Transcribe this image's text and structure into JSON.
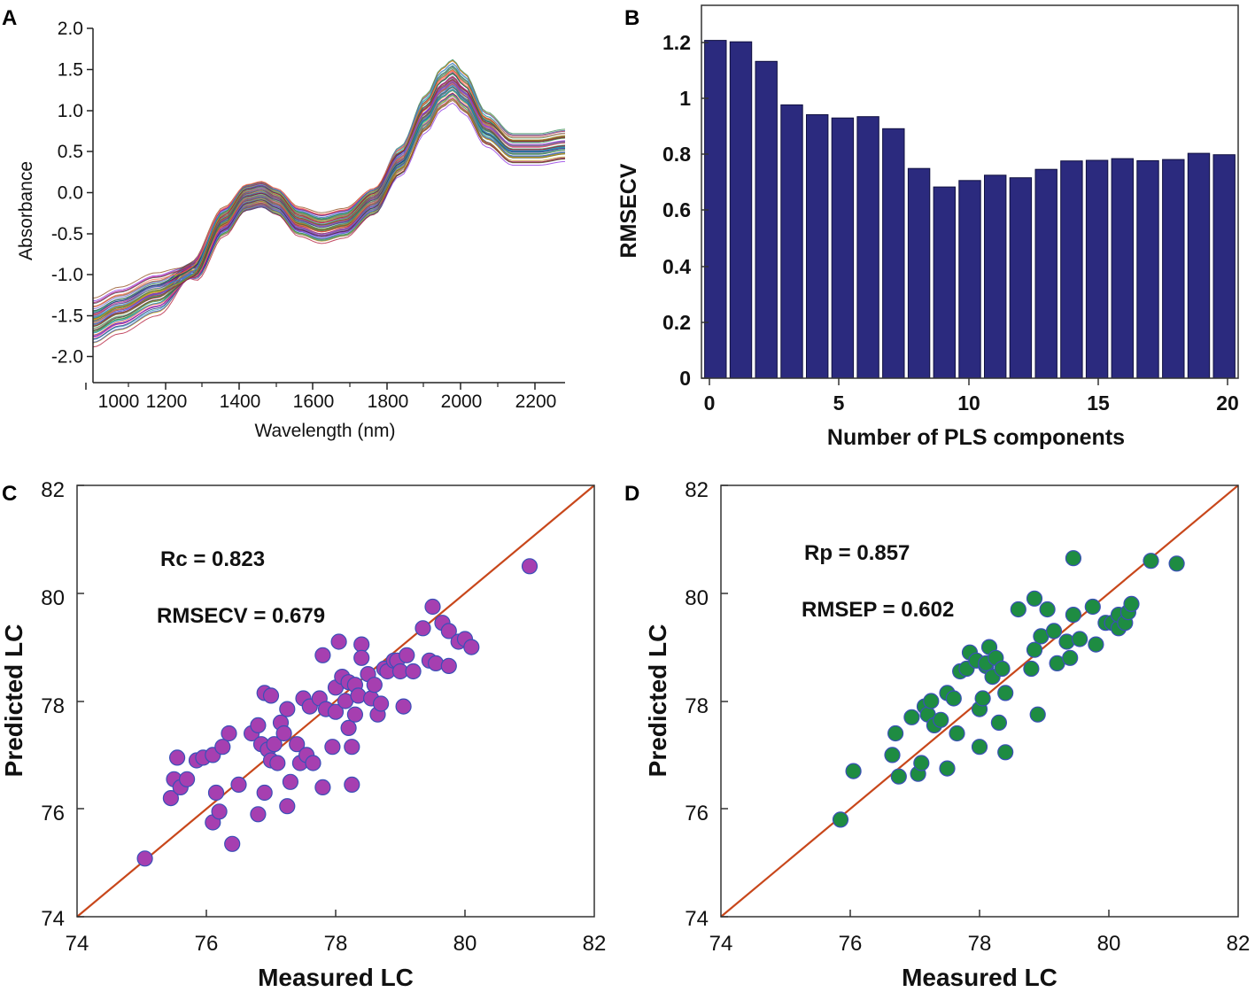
{
  "chart_data": [
    {
      "panel": "A",
      "type": "line",
      "xlabel": "Wavelength (nm)",
      "ylabel": "Absorbance",
      "xlim": [
        1030,
        2290
      ],
      "ylim": [
        -2.3,
        2.1
      ],
      "xticks": [
        1000,
        1200,
        1400,
        1600,
        1800,
        2000,
        2200
      ],
      "xtick_labels": [
        "1000",
        "1200",
        "1400",
        "1600",
        "1800",
        "2000",
        "2200"
      ],
      "yticks": [
        -2.0,
        -1.5,
        -1.0,
        -0.5,
        0.0,
        0.5,
        1.0,
        1.5,
        2.0
      ],
      "ytick_labels": [
        "-2.0",
        "-1.5",
        "-1.0",
        "-0.5",
        "0.0",
        "0.5",
        "1.0",
        "1.5",
        "2.0"
      ],
      "series_count": 60,
      "mean_spectrum": {
        "x": [
          1030,
          1100,
          1200,
          1300,
          1380,
          1440,
          1480,
          1520,
          1580,
          1640,
          1700,
          1780,
          1850,
          1920,
          1960,
          1990,
          2020,
          2080,
          2150,
          2220,
          2290
        ],
        "y": [
          -1.55,
          -1.4,
          -1.2,
          -0.9,
          -0.3,
          0.0,
          0.04,
          -0.05,
          -0.3,
          -0.38,
          -0.32,
          -0.05,
          0.45,
          1.05,
          1.35,
          1.45,
          1.3,
          0.85,
          0.6,
          0.6,
          0.65
        ]
      },
      "series_colors": [
        "#1a1a6e",
        "#b01030",
        "#1f8a3a",
        "#8a2be2",
        "#20a0c0",
        "#d4a017",
        "#444444",
        "#c71585",
        "#2e8b57",
        "#4169e1",
        "#8b4513",
        "#ff6347",
        "#6a5acd",
        "#3cb371",
        "#b8860b",
        "#708090"
      ]
    },
    {
      "panel": "B",
      "type": "bar",
      "xlabel": "Number of PLS components",
      "ylabel": "RMSECV",
      "categories": [
        0,
        1,
        2,
        3,
        4,
        5,
        6,
        7,
        8,
        9,
        10,
        11,
        12,
        13,
        14,
        15,
        16,
        17,
        18,
        19,
        20
      ],
      "values": [
        1.205,
        1.2,
        1.13,
        0.975,
        0.94,
        0.928,
        0.933,
        0.89,
        0.748,
        0.682,
        0.705,
        0.724,
        0.715,
        0.745,
        0.775,
        0.777,
        0.783,
        0.776,
        0.78,
        0.802,
        0.797
      ],
      "xlim": [
        -0.55,
        20.55
      ],
      "ylim": [
        0,
        1.33
      ],
      "xticks": [
        0,
        5,
        10,
        15,
        20
      ],
      "xtick_labels": [
        "0",
        "5",
        "10",
        "15",
        "20"
      ],
      "yticks": [
        0,
        0.2,
        0.4,
        0.6,
        0.8,
        1.0,
        1.2
      ],
      "ytick_labels": [
        "0",
        "0.2",
        "0.4",
        "0.6",
        "0.8",
        "1",
        "1.2"
      ],
      "bar_color": "#2b2a7e"
    },
    {
      "panel": "C",
      "type": "scatter",
      "xlabel": "Measured LC",
      "ylabel": "Predicted LC",
      "xlim": [
        74,
        82
      ],
      "ylim": [
        74,
        82
      ],
      "xticks": [
        74,
        76,
        78,
        80,
        82
      ],
      "xtick_labels": [
        "74",
        "76",
        "78",
        "80",
        "82"
      ],
      "yticks": [
        74,
        76,
        78,
        80,
        82
      ],
      "ytick_labels": [
        "74",
        "76",
        "78",
        "80",
        "82"
      ],
      "annotations": [
        "Rc = 0.823",
        "RMSECV = 0.679"
      ],
      "point_color": "#a63fb0",
      "line_color": "#c8471b",
      "points": [
        [
          75.05,
          75.08
        ],
        [
          75.45,
          76.2
        ],
        [
          75.5,
          76.55
        ],
        [
          75.55,
          76.95
        ],
        [
          75.6,
          76.4
        ],
        [
          75.7,
          76.55
        ],
        [
          75.85,
          76.9
        ],
        [
          75.95,
          76.95
        ],
        [
          76.1,
          75.75
        ],
        [
          76.1,
          77.0
        ],
        [
          76.15,
          76.3
        ],
        [
          76.2,
          75.95
        ],
        [
          76.25,
          77.15
        ],
        [
          76.35,
          77.4
        ],
        [
          76.4,
          75.35
        ],
        [
          76.5,
          76.45
        ],
        [
          76.7,
          77.4
        ],
        [
          76.8,
          75.9
        ],
        [
          76.8,
          77.55
        ],
        [
          76.85,
          77.2
        ],
        [
          76.9,
          76.3
        ],
        [
          76.9,
          78.15
        ],
        [
          76.95,
          77.1
        ],
        [
          77.0,
          76.9
        ],
        [
          77.0,
          78.1
        ],
        [
          77.05,
          77.2
        ],
        [
          77.1,
          76.85
        ],
        [
          77.15,
          77.6
        ],
        [
          77.2,
          77.4
        ],
        [
          77.25,
          77.85
        ],
        [
          77.25,
          76.05
        ],
        [
          77.3,
          76.5
        ],
        [
          77.4,
          77.2
        ],
        [
          77.45,
          76.85
        ],
        [
          77.5,
          78.05
        ],
        [
          77.55,
          77.0
        ],
        [
          77.6,
          77.9
        ],
        [
          77.65,
          76.85
        ],
        [
          77.75,
          78.05
        ],
        [
          77.8,
          76.4
        ],
        [
          77.8,
          78.85
        ],
        [
          77.85,
          77.85
        ],
        [
          77.95,
          77.15
        ],
        [
          78.0,
          78.25
        ],
        [
          78.0,
          77.8
        ],
        [
          78.05,
          79.1
        ],
        [
          78.1,
          78.45
        ],
        [
          78.15,
          78.0
        ],
        [
          78.2,
          77.5
        ],
        [
          78.2,
          78.35
        ],
        [
          78.25,
          76.45
        ],
        [
          78.25,
          77.15
        ],
        [
          78.3,
          77.75
        ],
        [
          78.3,
          78.3
        ],
        [
          78.35,
          78.1
        ],
        [
          78.4,
          79.05
        ],
        [
          78.4,
          78.8
        ],
        [
          78.5,
          78.5
        ],
        [
          78.55,
          78.05
        ],
        [
          78.6,
          78.3
        ],
        [
          78.65,
          77.75
        ],
        [
          78.7,
          77.95
        ],
        [
          78.75,
          78.6
        ],
        [
          78.8,
          78.55
        ],
        [
          78.9,
          78.75
        ],
        [
          78.95,
          78.75
        ],
        [
          79.0,
          78.55
        ],
        [
          79.05,
          77.9
        ],
        [
          79.1,
          78.85
        ],
        [
          79.2,
          78.55
        ],
        [
          79.35,
          79.35
        ],
        [
          79.45,
          78.75
        ],
        [
          79.5,
          79.75
        ],
        [
          79.55,
          78.7
        ],
        [
          79.65,
          79.45
        ],
        [
          79.75,
          78.65
        ],
        [
          79.75,
          79.3
        ],
        [
          79.9,
          79.1
        ],
        [
          80.0,
          79.15
        ],
        [
          80.1,
          79.0
        ],
        [
          81.0,
          80.5
        ]
      ]
    },
    {
      "panel": "D",
      "type": "scatter",
      "xlabel": "Measured LC",
      "ylabel": "Predicted LC",
      "xlim": [
        74,
        82
      ],
      "ylim": [
        74,
        82
      ],
      "xticks": [
        74,
        76,
        78,
        80,
        82
      ],
      "xtick_labels": [
        "74",
        "76",
        "78",
        "80",
        "82"
      ],
      "yticks": [
        74,
        76,
        78,
        80,
        82
      ],
      "ytick_labels": [
        "74",
        "76",
        "78",
        "80",
        "82"
      ],
      "annotations": [
        "Rp = 0.857",
        "RMSEP = 0.602"
      ],
      "point_color": "#1e8c42",
      "line_color": "#c8471b",
      "points": [
        [
          75.85,
          75.8
        ],
        [
          76.05,
          76.7
        ],
        [
          76.65,
          77.0
        ],
        [
          76.7,
          77.4
        ],
        [
          76.75,
          76.6
        ],
        [
          76.95,
          77.7
        ],
        [
          77.05,
          76.65
        ],
        [
          77.1,
          76.85
        ],
        [
          77.15,
          77.9
        ],
        [
          77.2,
          77.75
        ],
        [
          77.25,
          78.0
        ],
        [
          77.3,
          77.55
        ],
        [
          77.4,
          77.65
        ],
        [
          77.5,
          76.75
        ],
        [
          77.5,
          78.15
        ],
        [
          77.6,
          78.05
        ],
        [
          77.65,
          77.4
        ],
        [
          77.7,
          78.55
        ],
        [
          77.8,
          78.6
        ],
        [
          77.85,
          78.9
        ],
        [
          77.95,
          78.75
        ],
        [
          78.0,
          77.15
        ],
        [
          78.0,
          77.85
        ],
        [
          78.05,
          78.05
        ],
        [
          78.1,
          78.65
        ],
        [
          78.1,
          78.7
        ],
        [
          78.15,
          79.0
        ],
        [
          78.2,
          78.45
        ],
        [
          78.25,
          78.8
        ],
        [
          78.3,
          77.6
        ],
        [
          78.35,
          78.6
        ],
        [
          78.4,
          78.15
        ],
        [
          78.4,
          77.05
        ],
        [
          78.6,
          79.7
        ],
        [
          78.8,
          78.6
        ],
        [
          78.85,
          78.95
        ],
        [
          78.85,
          79.9
        ],
        [
          78.9,
          77.75
        ],
        [
          78.95,
          79.2
        ],
        [
          79.05,
          79.7
        ],
        [
          79.15,
          79.3
        ],
        [
          79.2,
          78.7
        ],
        [
          79.35,
          79.1
        ],
        [
          79.4,
          78.8
        ],
        [
          79.45,
          79.6
        ],
        [
          79.45,
          80.65
        ],
        [
          79.55,
          79.15
        ],
        [
          79.75,
          79.75
        ],
        [
          79.8,
          79.05
        ],
        [
          79.95,
          79.45
        ],
        [
          80.05,
          79.45
        ],
        [
          80.15,
          79.35
        ],
        [
          80.15,
          79.6
        ],
        [
          80.25,
          79.45
        ],
        [
          80.3,
          79.65
        ],
        [
          80.35,
          79.8
        ],
        [
          80.65,
          80.6
        ],
        [
          81.05,
          80.55
        ]
      ]
    }
  ],
  "panels": {
    "A": {
      "label": "A",
      "xlabel": "Wavelength (nm)",
      "ylabel": "Absorbance",
      "xtick_labels": [
        "1000",
        "1200",
        "1400",
        "1600",
        "1800",
        "2000",
        "2200"
      ],
      "ytick_labels": [
        "2.0",
        "1.5",
        "1.0",
        "0.5",
        "0.0",
        "-0.5",
        "-1.0",
        "-1.5",
        "-2.0"
      ]
    },
    "B": {
      "label": "B",
      "xlabel": "Number of PLS components",
      "ylabel": "RMSECV",
      "xtick_labels": [
        "0",
        "5",
        "10",
        "15",
        "20"
      ],
      "ytick_labels": [
        "1.2",
        "1",
        "0.8",
        "0.6",
        "0.4",
        "0.2",
        "0"
      ]
    },
    "C": {
      "label": "C",
      "xlabel": "Measured LC",
      "ylabel": "Predicted LC",
      "annotation1": "Rc = 0.823",
      "annotation2": "RMSECV = 0.679",
      "xtick_labels": [
        "74",
        "76",
        "78",
        "80",
        "82"
      ],
      "ytick_labels": [
        "82",
        "80",
        "78",
        "76",
        "74"
      ]
    },
    "D": {
      "label": "D",
      "xlabel": "Measured LC",
      "ylabel": "Predicted LC",
      "annotation1": "Rp = 0.857",
      "annotation2": "RMSEP = 0.602",
      "xtick_labels": [
        "74",
        "76",
        "78",
        "80",
        "82"
      ],
      "ytick_labels": [
        "82",
        "80",
        "78",
        "76",
        "74"
      ]
    }
  }
}
